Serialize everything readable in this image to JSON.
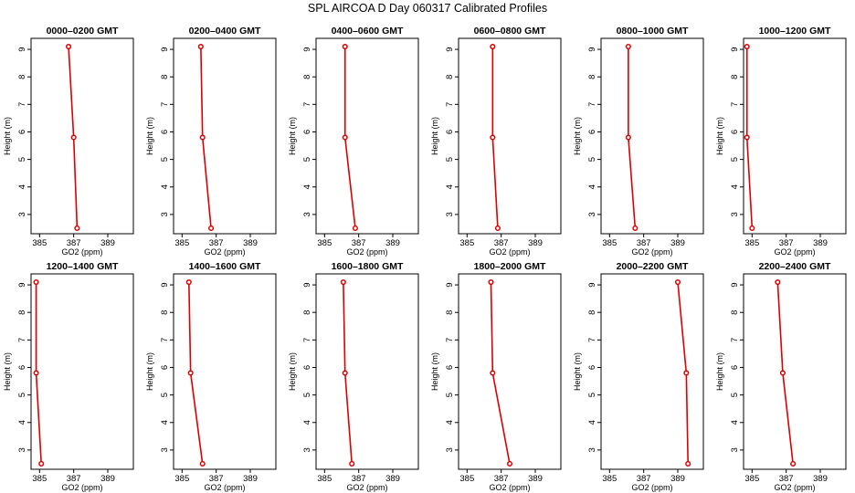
{
  "title": "SPL AIRCOA D  Day 060317  Calibrated Profiles",
  "colors": {
    "series": "#dd0000",
    "axes": "#000000",
    "background": "#ffffff"
  },
  "chart_data": [
    {
      "type": "line",
      "title": "0000–0200 GMT",
      "xlabel": "GO2 (ppm)",
      "ylabel": "Height (m)",
      "xlim": [
        384.5,
        390.5
      ],
      "ylim": [
        2.3,
        9.4
      ],
      "xticks": [
        385,
        387,
        389
      ],
      "yticks": [
        3,
        4,
        5,
        6,
        7,
        8,
        9
      ],
      "x": [
        386.7,
        387.0,
        387.2
      ],
      "y": [
        9.1,
        5.8,
        2.5
      ]
    },
    {
      "type": "line",
      "title": "0200–0400 GMT",
      "xlabel": "GO2 (ppm)",
      "ylabel": "Height (m)",
      "xlim": [
        384.5,
        390.5
      ],
      "ylim": [
        2.3,
        9.4
      ],
      "xticks": [
        385,
        387,
        389
      ],
      "yticks": [
        3,
        4,
        5,
        6,
        7,
        8,
        9
      ],
      "x": [
        386.1,
        386.2,
        386.7
      ],
      "y": [
        9.1,
        5.8,
        2.5
      ]
    },
    {
      "type": "line",
      "title": "0400–0600 GMT",
      "xlabel": "GO2 (ppm)",
      "ylabel": "Height (m)",
      "xlim": [
        384.5,
        390.5
      ],
      "ylim": [
        2.3,
        9.4
      ],
      "xticks": [
        385,
        387,
        389
      ],
      "yticks": [
        3,
        4,
        5,
        6,
        7,
        8,
        9
      ],
      "x": [
        386.2,
        386.2,
        386.8
      ],
      "y": [
        9.1,
        5.8,
        2.5
      ]
    },
    {
      "type": "line",
      "title": "0600–0800 GMT",
      "xlabel": "GO2 (ppm)",
      "ylabel": "Height (m)",
      "xlim": [
        384.5,
        390.5
      ],
      "ylim": [
        2.3,
        9.4
      ],
      "xticks": [
        385,
        387,
        389
      ],
      "yticks": [
        3,
        4,
        5,
        6,
        7,
        8,
        9
      ],
      "x": [
        386.5,
        386.5,
        386.8
      ],
      "y": [
        9.1,
        5.8,
        2.5
      ]
    },
    {
      "type": "line",
      "title": "0800–1000 GMT",
      "xlabel": "GO2 (ppm)",
      "ylabel": "Height (m)",
      "xlim": [
        384.5,
        390.5
      ],
      "ylim": [
        2.3,
        9.4
      ],
      "xticks": [
        385,
        387,
        389
      ],
      "yticks": [
        3,
        4,
        5,
        6,
        7,
        8,
        9
      ],
      "x": [
        386.1,
        386.1,
        386.5
      ],
      "y": [
        9.1,
        5.8,
        2.5
      ]
    },
    {
      "type": "line",
      "title": "1000–1200 GMT",
      "xlabel": "GO2 (ppm)",
      "ylabel": "Height (m)",
      "xlim": [
        384.5,
        390.5
      ],
      "ylim": [
        2.3,
        9.4
      ],
      "xticks": [
        385,
        387,
        389
      ],
      "yticks": [
        3,
        4,
        5,
        6,
        7,
        8,
        9
      ],
      "x": [
        384.7,
        384.7,
        385.0
      ],
      "y": [
        9.1,
        5.8,
        2.5
      ]
    },
    {
      "type": "line",
      "title": "1200–1400 GMT",
      "xlabel": "GO2 (ppm)",
      "ylabel": "Height (m)",
      "xlim": [
        384.5,
        390.5
      ],
      "ylim": [
        2.3,
        9.4
      ],
      "xticks": [
        385,
        387,
        389
      ],
      "yticks": [
        3,
        4,
        5,
        6,
        7,
        8,
        9
      ],
      "x": [
        384.8,
        384.8,
        385.1
      ],
      "y": [
        9.1,
        5.8,
        2.5
      ]
    },
    {
      "type": "line",
      "title": "1400–1600 GMT",
      "xlabel": "GO2 (ppm)",
      "ylabel": "Height (m)",
      "xlim": [
        384.5,
        390.5
      ],
      "ylim": [
        2.3,
        9.4
      ],
      "xticks": [
        385,
        387,
        389
      ],
      "yticks": [
        3,
        4,
        5,
        6,
        7,
        8,
        9
      ],
      "x": [
        385.4,
        385.5,
        386.2
      ],
      "y": [
        9.1,
        5.8,
        2.5
      ]
    },
    {
      "type": "line",
      "title": "1600–1800 GMT",
      "xlabel": "GO2 (ppm)",
      "ylabel": "Height (m)",
      "xlim": [
        384.5,
        390.5
      ],
      "ylim": [
        2.3,
        9.4
      ],
      "xticks": [
        385,
        387,
        389
      ],
      "yticks": [
        3,
        4,
        5,
        6,
        7,
        8,
        9
      ],
      "x": [
        386.1,
        386.2,
        386.6
      ],
      "y": [
        9.1,
        5.8,
        2.5
      ]
    },
    {
      "type": "line",
      "title": "1800–2000 GMT",
      "xlabel": "GO2 (ppm)",
      "ylabel": "Height (m)",
      "xlim": [
        384.5,
        390.5
      ],
      "ylim": [
        2.3,
        9.4
      ],
      "xticks": [
        385,
        387,
        389
      ],
      "yticks": [
        3,
        4,
        5,
        6,
        7,
        8,
        9
      ],
      "x": [
        386.4,
        386.5,
        387.5
      ],
      "y": [
        9.1,
        5.8,
        2.5
      ]
    },
    {
      "type": "line",
      "title": "2000–2200 GMT",
      "xlabel": "GO2 (ppm)",
      "ylabel": "Height (m)",
      "xlim": [
        384.5,
        390.5
      ],
      "ylim": [
        2.3,
        9.4
      ],
      "xticks": [
        385,
        387,
        389
      ],
      "yticks": [
        3,
        4,
        5,
        6,
        7,
        8,
        9
      ],
      "x": [
        389.0,
        389.5,
        389.6
      ],
      "y": [
        9.1,
        5.8,
        2.5
      ]
    },
    {
      "type": "line",
      "title": "2200–2400 GMT",
      "xlabel": "GO2 (ppm)",
      "ylabel": "Height (m)",
      "xlim": [
        384.5,
        390.5
      ],
      "ylim": [
        2.3,
        9.4
      ],
      "xticks": [
        385,
        387,
        389
      ],
      "yticks": [
        3,
        4,
        5,
        6,
        7,
        8,
        9
      ],
      "x": [
        386.5,
        386.8,
        387.4
      ],
      "y": [
        9.1,
        5.8,
        2.5
      ]
    }
  ]
}
